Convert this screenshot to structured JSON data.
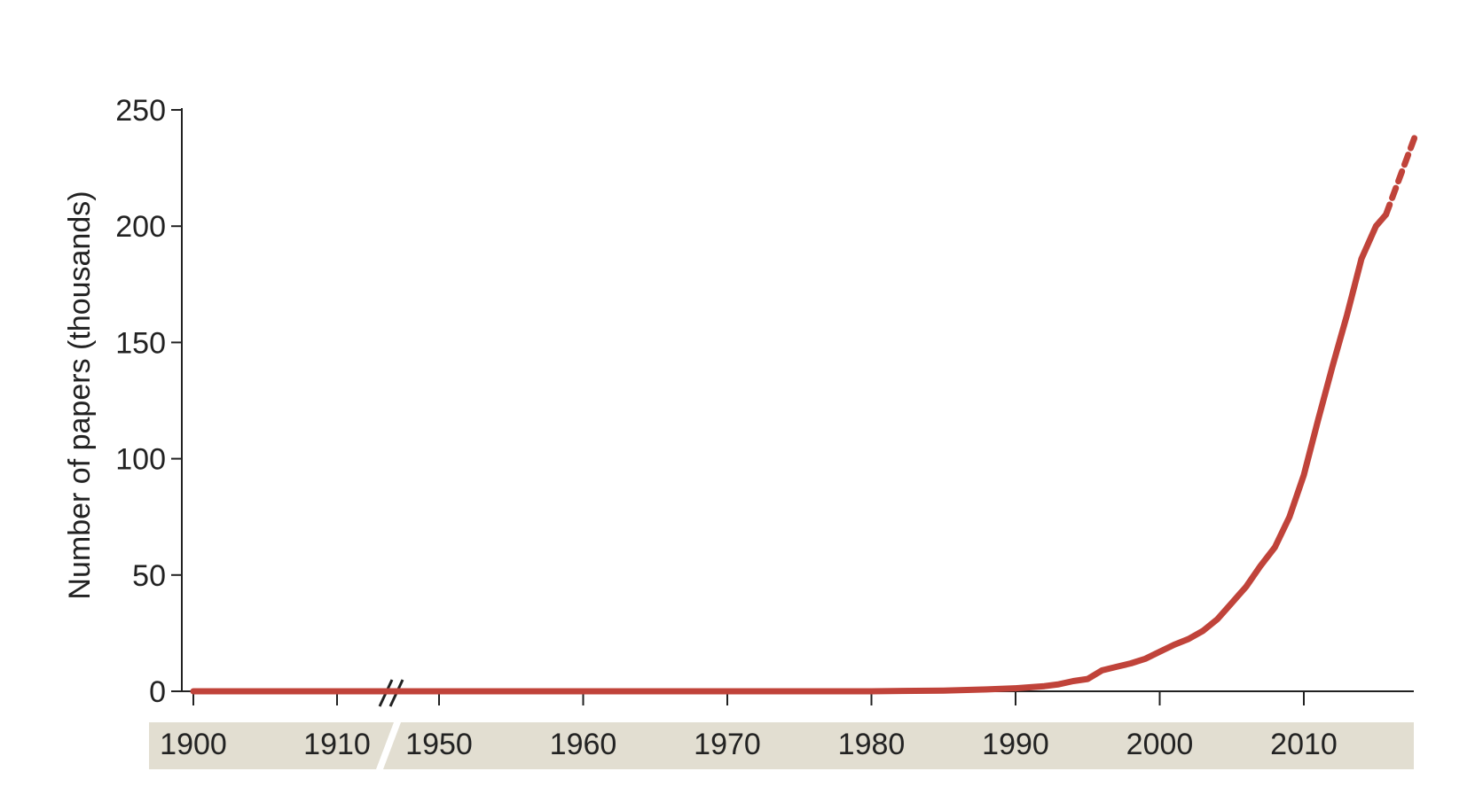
{
  "chart_data": {
    "type": "line",
    "title": "",
    "xlabel": "",
    "ylabel": "Number of papers (thousands)",
    "ylim": [
      0,
      250
    ],
    "yticks": [
      0,
      50,
      100,
      150,
      200,
      250
    ],
    "xlim": [
      1900,
      2018
    ],
    "axis_break": {
      "from": 1913,
      "to": 1946
    },
    "xticks": [
      1900,
      1910,
      1950,
      1960,
      1970,
      1980,
      1990,
      2000,
      2010
    ],
    "grid": false,
    "legend": "none",
    "series": [
      {
        "color": "#c0433a",
        "style": "solid",
        "points": [
          [
            1900,
            0
          ],
          [
            1913,
            0
          ],
          [
            1946,
            0
          ],
          [
            1960,
            0
          ],
          [
            1970,
            0
          ],
          [
            1980,
            0
          ],
          [
            1985,
            0.3
          ],
          [
            1988,
            0.8
          ],
          [
            1990,
            1.3
          ],
          [
            1992,
            2.2
          ],
          [
            1993,
            3
          ],
          [
            1994,
            4.4
          ],
          [
            1995,
            5.3
          ],
          [
            1996,
            9
          ],
          [
            1997,
            10.5
          ],
          [
            1998,
            12
          ],
          [
            1999,
            14
          ],
          [
            2000,
            17
          ],
          [
            2001,
            20
          ],
          [
            2002,
            22.5
          ],
          [
            2003,
            26
          ],
          [
            2004,
            31
          ],
          [
            2005,
            38
          ],
          [
            2006,
            45
          ],
          [
            2007,
            54
          ],
          [
            2008,
            62
          ],
          [
            2009,
            75
          ],
          [
            2010,
            93
          ],
          [
            2011,
            117
          ],
          [
            2012,
            140
          ],
          [
            2013,
            162
          ],
          [
            2014,
            186
          ],
          [
            2015,
            200
          ],
          [
            2015.7,
            205
          ]
        ]
      },
      {
        "color": "#c0433a",
        "style": "dashed",
        "points": [
          [
            2015.7,
            205
          ],
          [
            2017.8,
            240
          ]
        ]
      }
    ]
  }
}
